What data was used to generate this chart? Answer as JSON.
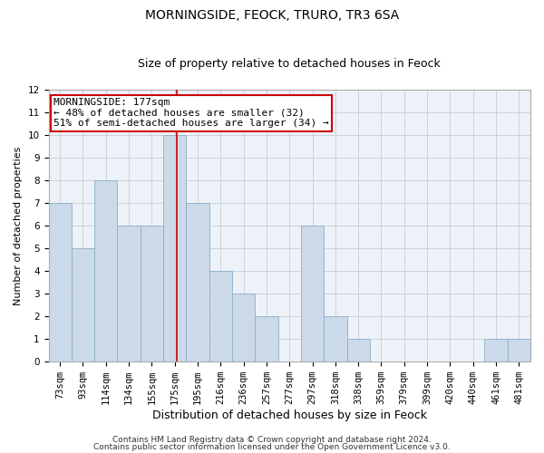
{
  "title": "MORNINGSIDE, FEOCK, TRURO, TR3 6SA",
  "subtitle": "Size of property relative to detached houses in Feock",
  "xlabel": "Distribution of detached houses by size in Feock",
  "ylabel": "Number of detached properties",
  "categories": [
    "73sqm",
    "93sqm",
    "114sqm",
    "134sqm",
    "155sqm",
    "175sqm",
    "195sqm",
    "216sqm",
    "236sqm",
    "257sqm",
    "277sqm",
    "297sqm",
    "318sqm",
    "338sqm",
    "359sqm",
    "379sqm",
    "399sqm",
    "420sqm",
    "440sqm",
    "461sqm",
    "481sqm"
  ],
  "values": [
    7,
    5,
    8,
    6,
    6,
    10,
    7,
    4,
    3,
    2,
    0,
    6,
    2,
    1,
    0,
    0,
    0,
    0,
    0,
    1,
    1
  ],
  "bar_color": "#ccd9e8",
  "bar_edge_color": "#8aafc8",
  "vline_x_index": 5.1,
  "vline_color": "#cc0000",
  "ylim": [
    0,
    12
  ],
  "yticks": [
    0,
    1,
    2,
    3,
    4,
    5,
    6,
    7,
    8,
    9,
    10,
    11,
    12
  ],
  "annotation_line1": "MORNINGSIDE: 177sqm",
  "annotation_line2": "← 48% of detached houses are smaller (32)",
  "annotation_line3": "51% of semi-detached houses are larger (34) →",
  "annotation_box_color": "#ffffff",
  "annotation_box_edge": "#cc0000",
  "footer1": "Contains HM Land Registry data © Crown copyright and database right 2024.",
  "footer2": "Contains public sector information licensed under the Open Government Licence v3.0.",
  "background_color": "#edf2f8",
  "grid_color": "#c8cdd4",
  "title_fontsize": 10,
  "subtitle_fontsize": 9,
  "xlabel_fontsize": 9,
  "ylabel_fontsize": 8,
  "tick_fontsize": 7.5,
  "footer_fontsize": 6.5,
  "annot_fontsize": 8
}
